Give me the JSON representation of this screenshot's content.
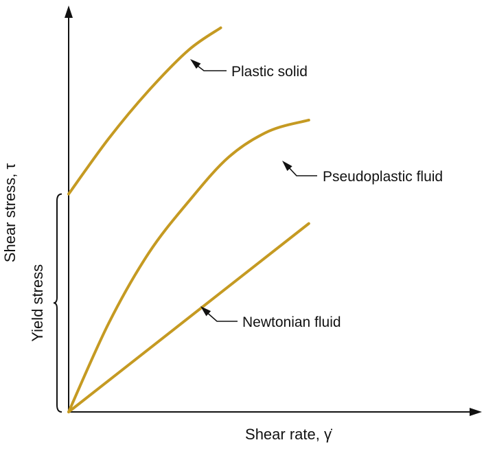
{
  "chart_data": {
    "type": "line",
    "title": "",
    "xlabel": "Shear rate, γ̇",
    "ylabel": "Shear stress, τ",
    "xlim": [
      0,
      1
    ],
    "ylim": [
      0,
      1
    ],
    "grid": false,
    "annotations": {
      "yield_stress": "Yield stress"
    },
    "series": [
      {
        "name": "Plastic solid",
        "x": [
          0,
          0.1,
          0.2,
          0.3,
          0.38
        ],
        "y": [
          0.59,
          0.74,
          0.87,
          0.98,
          1.04
        ]
      },
      {
        "name": "Pseudoplastic fluid",
        "x": [
          0,
          0.1,
          0.2,
          0.3,
          0.4,
          0.5,
          0.6
        ],
        "y": [
          0,
          0.24,
          0.43,
          0.57,
          0.69,
          0.76,
          0.79
        ]
      },
      {
        "name": "Newtonian fluid",
        "x": [
          0,
          0.2,
          0.4,
          0.6
        ],
        "y": [
          0,
          0.17,
          0.34,
          0.51
        ]
      }
    ],
    "colors": {
      "curves": "#C59A22",
      "axes": "#111111"
    }
  }
}
